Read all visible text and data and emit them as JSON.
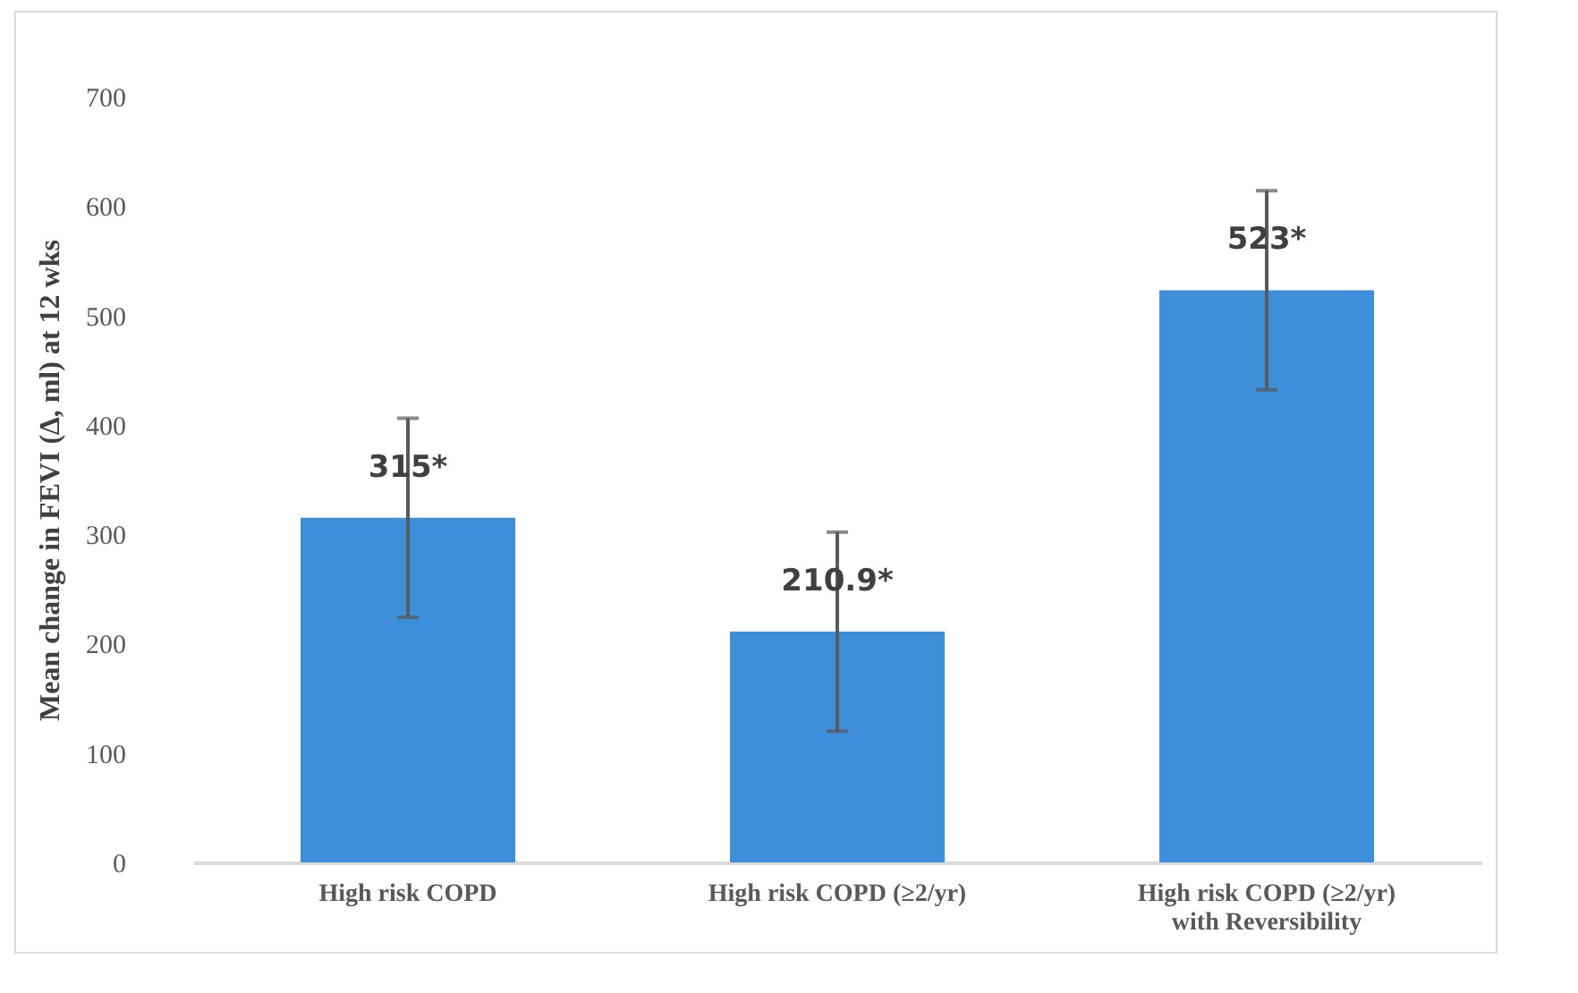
{
  "chart_data": {
    "type": "bar",
    "ylabel": "Mean change in FEVI (∆, ml) at 12 wks",
    "categories": [
      "High risk COPD",
      "High risk COPD (≥2/yr)",
      "High risk COPD  (≥2/yr)\nwith Reversibility"
    ],
    "values": [
      315,
      210.9,
      523
    ],
    "errors": [
      91,
      91,
      91
    ],
    "value_labels": [
      "315*",
      "210.9*",
      "523*"
    ],
    "color": "#3d8fd9",
    "ylim": [
      0,
      700
    ],
    "yticks": [
      0,
      100,
      200,
      300,
      400,
      500,
      600,
      700
    ],
    "grid": false
  }
}
